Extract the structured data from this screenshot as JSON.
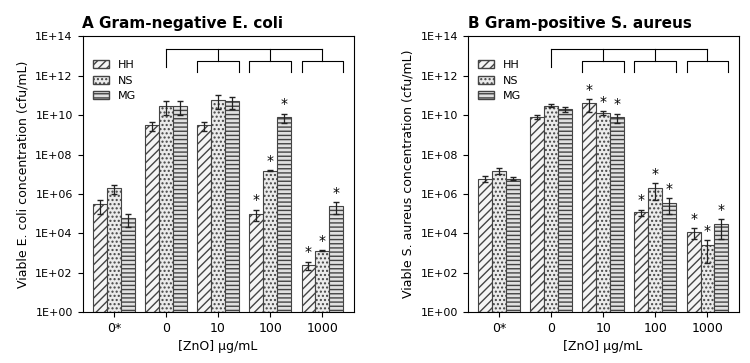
{
  "chart_data": [
    {
      "type": "bar",
      "title": "A Gram-negative E. coli",
      "x_label": "[ZnO] µg/mL",
      "y_label": "Viable E. coli concentration (cfu/mL)",
      "categories": [
        "0*",
        "0",
        "10",
        "100",
        "1000"
      ],
      "series": [
        {
          "name": "HH",
          "color": "#f5f5f5",
          "values": [
            300000,
            3000000000,
            3000000000,
            100000,
            250
          ],
          "errors": [
            200000,
            1500000000,
            1500000000,
            60000,
            120
          ],
          "marked": [
            false,
            false,
            false,
            true,
            true
          ]
        },
        {
          "name": "NS",
          "color": "#ebebeb",
          "values": [
            2000000,
            30000000000,
            60000000000,
            15000000,
            1300
          ],
          "errors": [
            1000000,
            20000000000,
            40000000000,
            1000000,
            50
          ],
          "marked": [
            false,
            false,
            false,
            true,
            true
          ]
        },
        {
          "name": "MG",
          "color": "#e0e0e0",
          "values": [
            60000,
            30000000000,
            50000000000,
            8000000000,
            250000
          ],
          "errors": [
            40000,
            20000000000,
            30000000000,
            4000000000,
            150000
          ],
          "marked": [
            false,
            false,
            false,
            true,
            true
          ]
        }
      ],
      "annotation": "*",
      "log": "y",
      "legend": "upper left",
      "ylim": [
        1,
        100000000000000
      ],
      "yticks": [
        {
          "value": 1,
          "label": "1E+00"
        },
        {
          "value": 100,
          "label": "1E+02"
        },
        {
          "value": 10000,
          "label": "1E+04"
        },
        {
          "value": 1000000,
          "label": "1E+06"
        },
        {
          "value": 100000000,
          "label": "1E+08"
        },
        {
          "value": 10000000000,
          "label": "1E+10"
        },
        {
          "value": 1000000000000,
          "label": "1E+12"
        },
        {
          "value": 100000000000000,
          "label": "1E+14"
        }
      ]
    },
    {
      "type": "bar",
      "title": "B Gram-positive S. aureus",
      "x_label": "[ZnO] µg/mL",
      "y_label": "Viable S. aureus concentration (cfu/mL)",
      "categories": [
        "0*",
        "0",
        "10",
        "100",
        "1000"
      ],
      "series": [
        {
          "name": "HH",
          "color": "#f5f5f5",
          "values": [
            6000000,
            8000000000,
            40000000000,
            120000,
            12000
          ],
          "errors": [
            2000000,
            2000000000,
            25000000000,
            40000,
            7000
          ],
          "marked": [
            false,
            false,
            true,
            true,
            true
          ]
        },
        {
          "name": "NS",
          "color": "#ebebeb",
          "values": [
            15000000,
            30000000000,
            13000000000,
            2000000,
            2500
          ],
          "errors": [
            5000000,
            5000000000,
            3000000000,
            1500000,
            2200
          ],
          "marked": [
            false,
            false,
            true,
            true,
            true
          ]
        },
        {
          "name": "MG",
          "color": "#e0e0e0",
          "values": [
            6000000,
            20000000000,
            8000000000,
            350000,
            30000
          ],
          "errors": [
            1000000,
            5000000000,
            4000000000,
            250000,
            25000
          ],
          "marked": [
            false,
            false,
            true,
            true,
            true
          ]
        }
      ],
      "annotation": "*",
      "log": "y",
      "legend": "upper left",
      "ylim": [
        1,
        100000000000000
      ],
      "yticks": [
        {
          "value": 1,
          "label": "1E+00"
        },
        {
          "value": 100,
          "label": "1E+02"
        },
        {
          "value": 10000,
          "label": "1E+04"
        },
        {
          "value": 1000000,
          "label": "1E+06"
        },
        {
          "value": 100000000,
          "label": "1E+08"
        },
        {
          "value": 10000000000,
          "label": "1E+10"
        },
        {
          "value": 1000000000000,
          "label": "1E+12"
        },
        {
          "value": 100000000000000,
          "label": "1E+14"
        }
      ]
    }
  ]
}
